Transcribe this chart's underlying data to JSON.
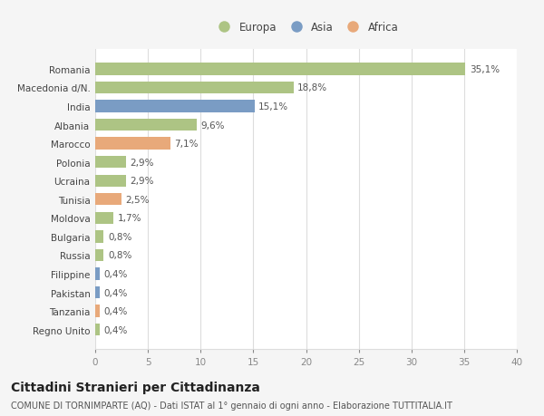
{
  "countries": [
    "Romania",
    "Macedonia d/N.",
    "India",
    "Albania",
    "Marocco",
    "Polonia",
    "Ucraina",
    "Tunisia",
    "Moldova",
    "Bulgaria",
    "Russia",
    "Filippine",
    "Pakistan",
    "Tanzania",
    "Regno Unito"
  ],
  "values": [
    35.1,
    18.8,
    15.1,
    9.6,
    7.1,
    2.9,
    2.9,
    2.5,
    1.7,
    0.8,
    0.8,
    0.4,
    0.4,
    0.4,
    0.4
  ],
  "labels": [
    "35,1%",
    "18,8%",
    "15,1%",
    "9,6%",
    "7,1%",
    "2,9%",
    "2,9%",
    "2,5%",
    "1,7%",
    "0,8%",
    "0,8%",
    "0,4%",
    "0,4%",
    "0,4%",
    "0,4%"
  ],
  "continents": [
    "Europa",
    "Europa",
    "Asia",
    "Europa",
    "Africa",
    "Europa",
    "Europa",
    "Africa",
    "Europa",
    "Europa",
    "Europa",
    "Asia",
    "Asia",
    "Africa",
    "Europa"
  ],
  "colors": {
    "Europa": "#adc484",
    "Asia": "#7a9cc4",
    "Africa": "#e8a97a"
  },
  "legend": [
    "Europa",
    "Asia",
    "Africa"
  ],
  "legend_colors": [
    "#adc484",
    "#7a9cc4",
    "#e8a97a"
  ],
  "xlim": [
    0,
    40
  ],
  "xticks": [
    0,
    5,
    10,
    15,
    20,
    25,
    30,
    35,
    40
  ],
  "title": "Cittadini Stranieri per Cittadinanza",
  "subtitle": "COMUNE DI TORNIMPARTE (AQ) - Dati ISTAT al 1° gennaio di ogni anno - Elaborazione TUTTITALIA.IT",
  "bg_color": "#f5f5f5",
  "plot_bg_color": "#ffffff",
  "grid_color": "#dddddd",
  "bar_height": 0.65,
  "title_fontsize": 10,
  "subtitle_fontsize": 7,
  "label_fontsize": 7.5,
  "tick_fontsize": 7.5,
  "legend_fontsize": 8.5
}
